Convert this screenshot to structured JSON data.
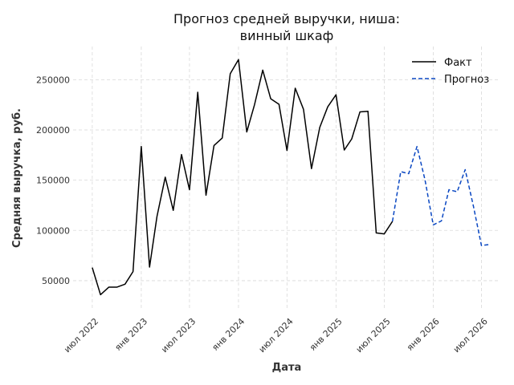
{
  "chart_data": {
    "type": "line",
    "title": [
      "Прогноз средней выручки, ниша:",
      "винный шкаф"
    ],
    "xlabel": "Дата",
    "ylabel": "Средняя выручка, руб.",
    "grid": true,
    "legend_position": "top-right",
    "x_range": [
      "2022-04-20",
      "2026-09-10"
    ],
    "y_range": [
      22000,
      283000
    ],
    "x_ticks": [
      {
        "date": "2022-07-01",
        "label": "июл 2022"
      },
      {
        "date": "2023-01-01",
        "label": "янв 2023"
      },
      {
        "date": "2023-07-01",
        "label": "июл 2023"
      },
      {
        "date": "2024-01-01",
        "label": "янв 2024"
      },
      {
        "date": "2024-07-01",
        "label": "июл 2024"
      },
      {
        "date": "2025-01-01",
        "label": "янв 2025"
      },
      {
        "date": "2025-07-01",
        "label": "июл 2025"
      },
      {
        "date": "2026-01-01",
        "label": "янв 2026"
      },
      {
        "date": "2026-07-01",
        "label": "июл 2026"
      }
    ],
    "y_ticks": [
      {
        "value": 50000,
        "label": "50000"
      },
      {
        "value": 100000,
        "label": "100000"
      },
      {
        "value": 150000,
        "label": "150000"
      },
      {
        "value": 200000,
        "label": "200000"
      },
      {
        "value": 250000,
        "label": "250000"
      }
    ],
    "series": [
      {
        "name": "Факт",
        "color": "#000000",
        "dashed": false,
        "points": [
          {
            "x": "2022-07-01",
            "y": 63000
          },
          {
            "x": "2022-08-01",
            "y": 36000
          },
          {
            "x": "2022-09-01",
            "y": 43500
          },
          {
            "x": "2022-10-01",
            "y": 43500
          },
          {
            "x": "2022-11-01",
            "y": 46500
          },
          {
            "x": "2022-12-01",
            "y": 59000
          },
          {
            "x": "2023-01-01",
            "y": 183500
          },
          {
            "x": "2023-02-01",
            "y": 63500
          },
          {
            "x": "2023-03-01",
            "y": 114000
          },
          {
            "x": "2023-04-01",
            "y": 153000
          },
          {
            "x": "2023-05-01",
            "y": 120000
          },
          {
            "x": "2023-06-01",
            "y": 175500
          },
          {
            "x": "2023-07-01",
            "y": 140500
          },
          {
            "x": "2023-08-01",
            "y": 237500
          },
          {
            "x": "2023-09-01",
            "y": 135000
          },
          {
            "x": "2023-10-01",
            "y": 184500
          },
          {
            "x": "2023-11-01",
            "y": 192000
          },
          {
            "x": "2023-12-01",
            "y": 256000
          },
          {
            "x": "2024-01-01",
            "y": 270000
          },
          {
            "x": "2024-02-01",
            "y": 198000
          },
          {
            "x": "2024-03-01",
            "y": 225000
          },
          {
            "x": "2024-04-01",
            "y": 259500
          },
          {
            "x": "2024-05-01",
            "y": 231000
          },
          {
            "x": "2024-06-01",
            "y": 225500
          },
          {
            "x": "2024-07-01",
            "y": 179500
          },
          {
            "x": "2024-08-01",
            "y": 241500
          },
          {
            "x": "2024-09-01",
            "y": 220500
          },
          {
            "x": "2024-10-01",
            "y": 161500
          },
          {
            "x": "2024-11-01",
            "y": 202500
          },
          {
            "x": "2024-12-01",
            "y": 223000
          },
          {
            "x": "2025-01-01",
            "y": 235000
          },
          {
            "x": "2025-02-01",
            "y": 180000
          },
          {
            "x": "2025-03-01",
            "y": 191000
          },
          {
            "x": "2025-04-01",
            "y": 218000
          },
          {
            "x": "2025-05-01",
            "y": 218500
          },
          {
            "x": "2025-06-01",
            "y": 97500
          },
          {
            "x": "2025-07-01",
            "y": 96500
          },
          {
            "x": "2025-08-01",
            "y": 109000
          }
        ]
      },
      {
        "name": "Прогноз",
        "color": "#0a47c2",
        "dashed": true,
        "points": [
          {
            "x": "2025-08-01",
            "y": 109000
          },
          {
            "x": "2025-09-01",
            "y": 158500
          },
          {
            "x": "2025-10-01",
            "y": 156500
          },
          {
            "x": "2025-11-01",
            "y": 183500
          },
          {
            "x": "2025-12-01",
            "y": 150500
          },
          {
            "x": "2026-01-01",
            "y": 105500
          },
          {
            "x": "2026-02-01",
            "y": 109500
          },
          {
            "x": "2026-03-01",
            "y": 140500
          },
          {
            "x": "2026-04-01",
            "y": 138500
          },
          {
            "x": "2026-05-01",
            "y": 160500
          },
          {
            "x": "2026-06-01",
            "y": 124000
          },
          {
            "x": "2026-07-01",
            "y": 85000
          },
          {
            "x": "2026-08-01",
            "y": 86000
          }
        ]
      }
    ]
  }
}
